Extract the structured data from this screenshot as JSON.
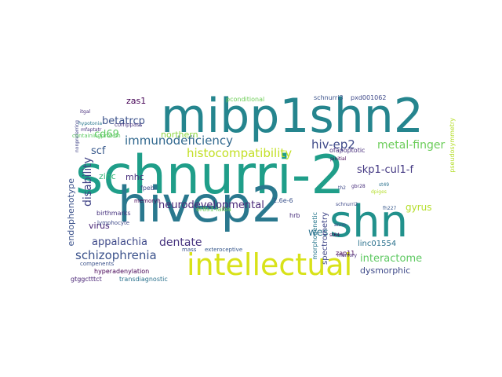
{
  "word_cloud": {
    "words": [
      {
        "text": "schnurri-2",
        "color": "#1f9e89"
      },
      {
        "text": "mibp1shn2",
        "color": "#25858e"
      },
      {
        "text": "hivep2",
        "color": "#2a788e"
      },
      {
        "text": "shn",
        "color": "#21918c"
      },
      {
        "text": "intellectual",
        "color": "#d8e219"
      },
      {
        "text": "immunodeficiency",
        "color": "#31688e"
      },
      {
        "text": "histocompatibility",
        "color": "#c2df23"
      },
      {
        "text": "hiv-ep2",
        "color": "#3e4989"
      },
      {
        "text": "metal-finger",
        "color": "#6ccd5a"
      },
      {
        "text": "disability",
        "color": "#414487"
      },
      {
        "text": "schizophrenia",
        "color": "#3b528b"
      },
      {
        "text": "neurodevelopmental",
        "color": "#482878"
      },
      {
        "text": "skp1-cul1-f",
        "color": "#443983"
      },
      {
        "text": "betatrcp",
        "color": "#3b528b"
      },
      {
        "text": "cd69",
        "color": "#5ec962"
      },
      {
        "text": "scf",
        "color": "#38598c"
      },
      {
        "text": "zinc",
        "color": "#35b779"
      },
      {
        "text": "mhc",
        "color": "#472d7b"
      },
      {
        "text": "northern",
        "color": "#8fd744"
      },
      {
        "text": "zas1",
        "color": "#440154"
      },
      {
        "text": "dentate",
        "color": "#46327e"
      },
      {
        "text": "wes",
        "color": "#2c728e"
      },
      {
        "text": "gyrus",
        "color": "#b5de2b"
      },
      {
        "text": "appalachia",
        "color": "#3e4989"
      },
      {
        "text": "virus",
        "color": "#482475"
      },
      {
        "text": "endophenotype",
        "color": "#3b528b"
      },
      {
        "text": "interactome",
        "color": "#5ec962"
      },
      {
        "text": "dysmorphic",
        "color": "#3e4989"
      },
      {
        "text": "linc01554",
        "color": "#2c728e"
      },
      {
        "text": "spectrometry",
        "color": "#404688"
      },
      {
        "text": "schnurri3",
        "color": "#3b528b"
      },
      {
        "text": "pxd001062",
        "color": "#3e4989"
      },
      {
        "text": "ofapoptotic",
        "color": "#472d7b"
      },
      {
        "text": "pconditional",
        "color": "#6ece58"
      },
      {
        "text": "pseudosymmetry",
        "color": "#b5de2b"
      },
      {
        "text": "birthmarks",
        "color": "#46327e"
      },
      {
        "text": "lymphocyte",
        "color": "#3e4989"
      },
      {
        "text": "compenents",
        "color": "#3b528b"
      },
      {
        "text": "hyperadenylation",
        "color": "#440154"
      },
      {
        "text": "transdiagnostic",
        "color": "#2c728e"
      },
      {
        "text": "gtggctttct",
        "color": "#482475"
      },
      {
        "text": "exteroceptive",
        "color": "#38598c"
      },
      {
        "text": "or8s1-laiba",
        "color": "#6ece58"
      },
      {
        "text": "memoryh",
        "color": "#440154"
      },
      {
        "text": "fpeb",
        "color": "#3e4989"
      },
      {
        "text": "1.6e-6",
        "color": "#3b528b"
      },
      {
        "text": "hrb",
        "color": "#472d7b"
      },
      {
        "text": "mass",
        "color": "#3b528b"
      },
      {
        "text": "morphogenetic",
        "color": "#2a788e"
      },
      {
        "text": "zap11",
        "color": "#440154"
      },
      {
        "text": "memory",
        "color": "#472d7b"
      },
      {
        "text": "anno",
        "color": "#3e4989"
      },
      {
        "text": "st64",
        "color": "#440154"
      },
      {
        "text": "fh227",
        "color": "#38598c"
      },
      {
        "text": "schnurri2",
        "color": "#3e4989"
      },
      {
        "text": "gbr28",
        "color": "#472d7b"
      },
      {
        "text": "dpiges",
        "color": "#b5de2b"
      },
      {
        "text": "st49",
        "color": "#2c728e"
      },
      {
        "text": "th2",
        "color": "#3e4989"
      },
      {
        "text": "pinitial",
        "color": "#440154"
      },
      {
        "text": "itgal",
        "color": "#472d7b"
      },
      {
        "text": "hypotonia",
        "color": "#2a788e"
      },
      {
        "text": "nonpreferring",
        "color": "#414487"
      },
      {
        "text": "containingprotein",
        "color": "#5ec962"
      },
      {
        "text": "comppass",
        "color": "#46327e"
      },
      {
        "text": "mfaptatr",
        "color": "#46327e"
      }
    ]
  }
}
